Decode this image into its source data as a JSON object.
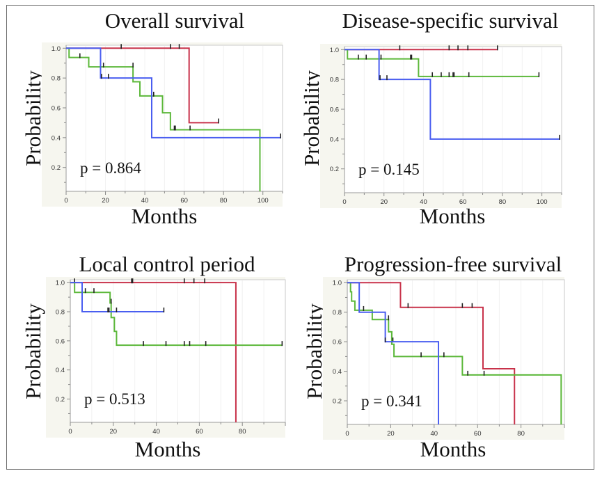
{
  "figure": {
    "colors": {
      "group_red": "#c8324a",
      "group_green": "#5cb83a",
      "group_blue": "#4a5ef0",
      "censor": "#222222",
      "plot_bg": "#ffffff",
      "axis_bg": "#f6f6ef"
    }
  },
  "chart_data": [
    {
      "type": "line",
      "subtype": "kaplan-meier",
      "title": "Overall survival",
      "xlabel": "Months",
      "ylabel": "Probability",
      "annotation": "p = 0.864",
      "xlim": [
        0,
        110
      ],
      "ylim": [
        0.04,
        1.02
      ],
      "xticks": [
        0,
        20,
        40,
        60,
        80,
        100
      ],
      "yticks": [
        0.2,
        0.4,
        0.6,
        0.8,
        1.0
      ],
      "ytick_labels": [
        "0.2",
        "0.4",
        "0.6",
        "0.8",
        "1.0"
      ],
      "xtick_labels": [
        "0",
        "20",
        "40",
        "60",
        "80",
        "100"
      ],
      "series": [
        {
          "name": "red",
          "color": "#c8324a",
          "steps": [
            [
              0,
              1.0
            ],
            [
              62.5,
              0.5
            ]
          ],
          "end": 77.5,
          "censored": [
            [
              28,
              1.0
            ],
            [
              53,
              1.0
            ],
            [
              57.5,
              1.0
            ],
            [
              77.5,
              0.5
            ]
          ]
        },
        {
          "name": "green",
          "color": "#5cb83a",
          "steps": [
            [
              0,
              1.0
            ],
            [
              1.5,
              0.938
            ],
            [
              11.5,
              0.875
            ],
            [
              34,
              0.775
            ],
            [
              37.5,
              0.68
            ],
            [
              49,
              0.567
            ],
            [
              53,
              0.453
            ],
            [
              98.5,
              0.0
            ]
          ],
          "end": 98.5,
          "censored": [
            [
              7,
              0.938
            ],
            [
              19,
              0.875
            ],
            [
              34,
              0.875
            ],
            [
              44.5,
              0.68
            ],
            [
              55,
              0.453
            ],
            [
              55.5,
              0.453
            ],
            [
              63,
              0.453
            ]
          ]
        },
        {
          "name": "blue",
          "color": "#4a5ef0",
          "steps": [
            [
              0,
              1.0
            ],
            [
              17.5,
              0.8
            ],
            [
              43.5,
              0.4
            ]
          ],
          "end": 109,
          "censored": [
            [
              18,
              0.8
            ],
            [
              21.5,
              0.8
            ],
            [
              109,
              0.4
            ]
          ]
        }
      ]
    },
    {
      "type": "line",
      "subtype": "kaplan-meier",
      "title": "Disease-specific survival",
      "xlabel": "Months",
      "ylabel": "Probability",
      "annotation": "p = 0.145",
      "xlim": [
        0,
        110
      ],
      "ylim": [
        0.04,
        1.02
      ],
      "xticks": [
        0,
        20,
        40,
        60,
        80,
        100
      ],
      "yticks": [
        0.2,
        0.4,
        0.6,
        0.8,
        1.0
      ],
      "ytick_labels": [
        "0.2",
        "0.4",
        "0.6",
        "0.8",
        "1.0"
      ],
      "xtick_labels": [
        "0",
        "20",
        "40",
        "60",
        "80",
        "100"
      ],
      "series": [
        {
          "name": "red",
          "color": "#c8324a",
          "steps": [
            [
              0,
              1.0
            ]
          ],
          "end": 77.5,
          "censored": [
            [
              28,
              1.0
            ],
            [
              53,
              1.0
            ],
            [
              57.5,
              1.0
            ],
            [
              62.5,
              1.0
            ],
            [
              77.5,
              1.0
            ]
          ]
        },
        {
          "name": "green",
          "color": "#5cb83a",
          "steps": [
            [
              0,
              1.0
            ],
            [
              1.5,
              0.938
            ],
            [
              37.5,
              0.82
            ]
          ],
          "end": 98.5,
          "censored": [
            [
              7,
              0.938
            ],
            [
              11,
              0.938
            ],
            [
              18.5,
              0.938
            ],
            [
              33.5,
              0.938
            ],
            [
              34,
              0.938
            ],
            [
              44.5,
              0.82
            ],
            [
              49,
              0.82
            ],
            [
              53,
              0.82
            ],
            [
              55,
              0.82
            ],
            [
              55.5,
              0.82
            ],
            [
              63,
              0.82
            ],
            [
              98.5,
              0.82
            ]
          ]
        },
        {
          "name": "blue",
          "color": "#4a5ef0",
          "steps": [
            [
              0,
              1.0
            ],
            [
              17.5,
              0.8
            ],
            [
              43.5,
              0.4
            ]
          ],
          "end": 109,
          "censored": [
            [
              18,
              0.8
            ],
            [
              21.5,
              0.8
            ],
            [
              109,
              0.4
            ]
          ]
        }
      ]
    },
    {
      "type": "line",
      "subtype": "kaplan-meier",
      "title": "Local control period",
      "xlabel": "Months",
      "ylabel": "Probability",
      "annotation": "p = 0.513",
      "xlim": [
        0,
        100
      ],
      "ylim": [
        0.04,
        1.02
      ],
      "xticks": [
        0,
        20,
        40,
        60,
        80
      ],
      "yticks": [
        0.2,
        0.4,
        0.6,
        0.8,
        1.0
      ],
      "ytick_labels": [
        "0.2",
        "0.4",
        "0.6",
        "0.8",
        "1.0"
      ],
      "xtick_labels": [
        "0",
        "20",
        "40",
        "60",
        "80"
      ],
      "series": [
        {
          "name": "red",
          "color": "#c8324a",
          "steps": [
            [
              0,
              1.0
            ],
            [
              77,
              0.0
            ]
          ],
          "end": 77,
          "censored": [
            [
              2,
              1.0
            ],
            [
              28.5,
              1.0
            ],
            [
              29,
              1.0
            ],
            [
              53,
              1.0
            ],
            [
              57.5,
              1.0
            ],
            [
              62.5,
              1.0
            ]
          ]
        },
        {
          "name": "green",
          "color": "#5cb83a",
          "steps": [
            [
              0,
              1.0
            ],
            [
              2,
              0.933
            ],
            [
              18.5,
              0.86
            ],
            [
              19,
              0.76
            ],
            [
              20.5,
              0.665
            ],
            [
              21.5,
              0.57
            ]
          ],
          "end": 98.5,
          "censored": [
            [
              7,
              0.933
            ],
            [
              11,
              0.933
            ],
            [
              19,
              0.86
            ],
            [
              34,
              0.57
            ],
            [
              44.5,
              0.57
            ],
            [
              53,
              0.57
            ],
            [
              55.5,
              0.57
            ],
            [
              63,
              0.57
            ],
            [
              98.5,
              0.57
            ]
          ]
        },
        {
          "name": "blue",
          "color": "#4a5ef0",
          "steps": [
            [
              0,
              1.0
            ],
            [
              5.5,
              0.8
            ]
          ],
          "end": 43.5,
          "censored": [
            [
              17.5,
              0.8
            ],
            [
              18,
              0.8
            ],
            [
              21.5,
              0.8
            ],
            [
              43.5,
              0.8
            ]
          ]
        }
      ]
    },
    {
      "type": "line",
      "subtype": "kaplan-meier",
      "title": "Progression-free survival",
      "xlabel": "Months",
      "ylabel": "Probability",
      "annotation": "p = 0.341",
      "xlim": [
        0,
        100
      ],
      "ylim": [
        0.04,
        1.02
      ],
      "xticks": [
        0,
        20,
        40,
        60,
        80
      ],
      "yticks": [
        0.2,
        0.4,
        0.6,
        0.8,
        1.0
      ],
      "ytick_labels": [
        "0.2",
        "0.4",
        "0.6",
        "0.8",
        "1.0"
      ],
      "xtick_labels": [
        "0",
        "20",
        "40",
        "60",
        "80"
      ],
      "series": [
        {
          "name": "red",
          "color": "#c8324a",
          "steps": [
            [
              0,
              1.0
            ],
            [
              24.5,
              0.833
            ],
            [
              62.5,
              0.417
            ],
            [
              77,
              0.0
            ]
          ],
          "end": 77,
          "censored": [
            [
              28,
              0.833
            ],
            [
              53,
              0.833
            ],
            [
              57.5,
              0.833
            ]
          ]
        },
        {
          "name": "green",
          "color": "#5cb83a",
          "steps": [
            [
              0,
              1.0
            ],
            [
              1.5,
              0.938
            ],
            [
              2,
              0.875
            ],
            [
              3.5,
              0.813
            ],
            [
              11.5,
              0.75
            ],
            [
              19,
              0.667
            ],
            [
              20.5,
              0.583
            ],
            [
              21.5,
              0.5
            ],
            [
              53,
              0.375
            ],
            [
              98.5,
              0.0
            ]
          ],
          "end": 98.5,
          "censored": [
            [
              7.5,
              0.813
            ],
            [
              19,
              0.75
            ],
            [
              21,
              0.6
            ],
            [
              34,
              0.5
            ],
            [
              44.5,
              0.5
            ],
            [
              55.5,
              0.375
            ],
            [
              63,
              0.375
            ]
          ]
        },
        {
          "name": "blue",
          "color": "#4a5ef0",
          "steps": [
            [
              0,
              1.0
            ],
            [
              5.5,
              0.8
            ],
            [
              17.5,
              0.6
            ],
            [
              42,
              0.0
            ]
          ],
          "end": 42,
          "censored": [
            [
              17.5,
              0.6
            ]
          ]
        }
      ]
    }
  ]
}
